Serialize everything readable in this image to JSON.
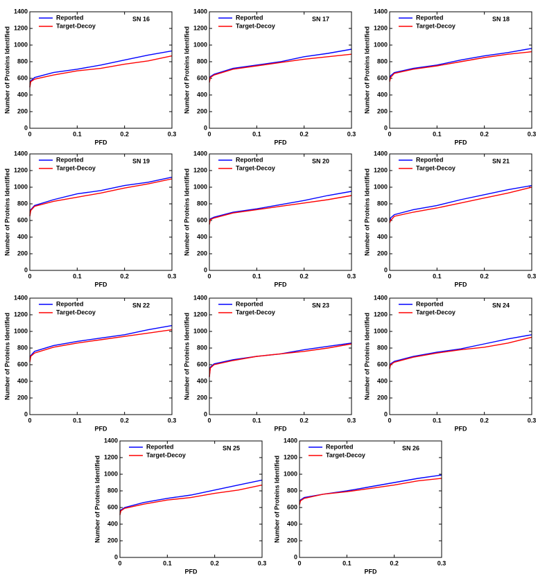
{
  "chart_data": [
    {
      "type": "line",
      "title": "SN 16",
      "xlabel": "PFD",
      "ylabel": "Number of Proteins Identified",
      "x": [
        0,
        0.002,
        0.01,
        0.05,
        0.1,
        0.15,
        0.2,
        0.25,
        0.3
      ],
      "xlim": [
        0,
        0.3
      ],
      "ylim": [
        0,
        1400
      ],
      "xticks": [
        0,
        0.1,
        0.2,
        0.3
      ],
      "yticks": [
        0,
        200,
        400,
        600,
        800,
        1000,
        1200,
        1400
      ],
      "series": [
        {
          "name": "Reported",
          "color": "#0000ff",
          "values": [
            500,
            570,
            610,
            670,
            710,
            760,
            820,
            880,
            930
          ]
        },
        {
          "name": "Target-Decoy",
          "color": "#ff0000",
          "values": [
            490,
            560,
            590,
            640,
            690,
            720,
            770,
            810,
            870
          ]
        }
      ]
    },
    {
      "type": "line",
      "title": "SN 17",
      "xlabel": "PFD",
      "ylabel": "Number of Proteins Identified",
      "x": [
        0,
        0.002,
        0.01,
        0.05,
        0.1,
        0.15,
        0.2,
        0.25,
        0.3
      ],
      "xlim": [
        0,
        0.3
      ],
      "ylim": [
        0,
        1400
      ],
      "xticks": [
        0,
        0.1,
        0.2,
        0.3
      ],
      "yticks": [
        0,
        200,
        400,
        600,
        800,
        1000,
        1200,
        1400
      ],
      "series": [
        {
          "name": "Reported",
          "color": "#0000ff",
          "values": [
            560,
            620,
            650,
            720,
            760,
            800,
            860,
            900,
            950
          ]
        },
        {
          "name": "Target-Decoy",
          "color": "#ff0000",
          "values": [
            550,
            610,
            640,
            710,
            750,
            790,
            830,
            860,
            890
          ]
        }
      ]
    },
    {
      "type": "line",
      "title": "SN 18",
      "xlabel": "PFD",
      "ylabel": "Number of Proteins Identified",
      "x": [
        0,
        0.002,
        0.01,
        0.05,
        0.1,
        0.15,
        0.2,
        0.25,
        0.3
      ],
      "xlim": [
        0,
        0.3
      ],
      "ylim": [
        0,
        1400
      ],
      "xticks": [
        0,
        0.1,
        0.2,
        0.3
      ],
      "yticks": [
        0,
        200,
        400,
        600,
        800,
        1000,
        1200,
        1400
      ],
      "series": [
        {
          "name": "Reported",
          "color": "#0000ff",
          "values": [
            580,
            630,
            670,
            720,
            760,
            820,
            870,
            910,
            960
          ]
        },
        {
          "name": "Target-Decoy",
          "color": "#ff0000",
          "values": [
            560,
            610,
            660,
            710,
            750,
            800,
            850,
            890,
            920
          ]
        }
      ]
    },
    {
      "type": "line",
      "title": "SN 19",
      "xlabel": "PFD",
      "ylabel": "Number of Proteins Identified",
      "x": [
        0,
        0.002,
        0.01,
        0.05,
        0.1,
        0.15,
        0.2,
        0.25,
        0.3
      ],
      "xlim": [
        0,
        0.3
      ],
      "ylim": [
        0,
        1400
      ],
      "xticks": [
        0,
        0.1,
        0.2,
        0.3
      ],
      "yticks": [
        0,
        200,
        400,
        600,
        800,
        1000,
        1200,
        1400
      ],
      "series": [
        {
          "name": "Reported",
          "color": "#0000ff",
          "values": [
            660,
            730,
            780,
            850,
            920,
            960,
            1020,
            1060,
            1120
          ]
        },
        {
          "name": "Target-Decoy",
          "color": "#ff0000",
          "values": [
            650,
            720,
            770,
            830,
            880,
            930,
            990,
            1040,
            1100
          ]
        }
      ]
    },
    {
      "type": "line",
      "title": "SN 20",
      "xlabel": "PFD",
      "ylabel": "Number of Proteins Identified",
      "x": [
        0,
        0.002,
        0.01,
        0.05,
        0.1,
        0.15,
        0.2,
        0.25,
        0.3
      ],
      "xlim": [
        0,
        0.3
      ],
      "ylim": [
        0,
        1400
      ],
      "xticks": [
        0,
        0.1,
        0.2,
        0.3
      ],
      "yticks": [
        0,
        200,
        400,
        600,
        800,
        1000,
        1200,
        1400
      ],
      "series": [
        {
          "name": "Reported",
          "color": "#0000ff",
          "values": [
            560,
            620,
            640,
            700,
            740,
            790,
            840,
            900,
            950
          ]
        },
        {
          "name": "Target-Decoy",
          "color": "#ff0000",
          "values": [
            550,
            610,
            630,
            690,
            730,
            770,
            810,
            850,
            900
          ]
        }
      ]
    },
    {
      "type": "line",
      "title": "SN 21",
      "xlabel": "PFD",
      "ylabel": "Number of Proteins Identified",
      "x": [
        0,
        0.002,
        0.01,
        0.05,
        0.1,
        0.15,
        0.2,
        0.25,
        0.3
      ],
      "xlim": [
        0,
        0.3
      ],
      "ylim": [
        0,
        1400
      ],
      "xticks": [
        0,
        0.1,
        0.2,
        0.3
      ],
      "yticks": [
        0,
        200,
        400,
        600,
        800,
        1000,
        1200,
        1400
      ],
      "series": [
        {
          "name": "Reported",
          "color": "#0000ff",
          "values": [
            580,
            630,
            670,
            730,
            780,
            850,
            910,
            970,
            1020
          ]
        },
        {
          "name": "Target-Decoy",
          "color": "#ff0000",
          "values": [
            570,
            600,
            650,
            700,
            750,
            810,
            870,
            930,
            1000
          ]
        }
      ]
    },
    {
      "type": "line",
      "title": "SN 22",
      "xlabel": "PFD",
      "ylabel": "Number of Proteins Identified",
      "x": [
        0,
        0.002,
        0.01,
        0.05,
        0.1,
        0.15,
        0.2,
        0.25,
        0.3
      ],
      "xlim": [
        0,
        0.3
      ],
      "ylim": [
        0,
        1400
      ],
      "xticks": [
        0,
        0.1,
        0.2,
        0.3
      ],
      "yticks": [
        0,
        200,
        400,
        600,
        800,
        1000,
        1200,
        1400
      ],
      "series": [
        {
          "name": "Reported",
          "color": "#0000ff",
          "values": [
            640,
            710,
            760,
            830,
            880,
            920,
            960,
            1020,
            1070
          ]
        },
        {
          "name": "Target-Decoy",
          "color": "#ff0000",
          "values": [
            630,
            700,
            740,
            810,
            860,
            900,
            940,
            980,
            1020
          ]
        }
      ]
    },
    {
      "type": "line",
      "title": "SN 23",
      "xlabel": "PFD",
      "ylabel": "Number of Proteins Identified",
      "x": [
        0,
        0.002,
        0.01,
        0.05,
        0.1,
        0.15,
        0.2,
        0.25,
        0.3
      ],
      "xlim": [
        0,
        0.3
      ],
      "ylim": [
        0,
        1400
      ],
      "xticks": [
        0,
        0.1,
        0.2,
        0.3
      ],
      "yticks": [
        0,
        200,
        400,
        600,
        800,
        1000,
        1200,
        1400
      ],
      "series": [
        {
          "name": "Reported",
          "color": "#0000ff",
          "values": [
            460,
            570,
            610,
            660,
            700,
            730,
            780,
            820,
            860
          ]
        },
        {
          "name": "Target-Decoy",
          "color": "#ff0000",
          "values": [
            450,
            560,
            600,
            650,
            700,
            730,
            760,
            800,
            850
          ]
        }
      ]
    },
    {
      "type": "line",
      "title": "SN 24",
      "xlabel": "PFD",
      "ylabel": "Number of Proteins Identified",
      "x": [
        0,
        0.002,
        0.01,
        0.05,
        0.1,
        0.15,
        0.2,
        0.25,
        0.3
      ],
      "xlim": [
        0,
        0.3
      ],
      "ylim": [
        0,
        1400
      ],
      "xticks": [
        0,
        0.1,
        0.2,
        0.3
      ],
      "yticks": [
        0,
        200,
        400,
        600,
        800,
        1000,
        1200,
        1400
      ],
      "series": [
        {
          "name": "Reported",
          "color": "#0000ff",
          "values": [
            560,
            610,
            640,
            700,
            750,
            790,
            850,
            910,
            960
          ]
        },
        {
          "name": "Target-Decoy",
          "color": "#ff0000",
          "values": [
            550,
            600,
            630,
            690,
            740,
            780,
            810,
            860,
            930
          ]
        }
      ]
    },
    {
      "type": "line",
      "title": "SN 25",
      "xlabel": "PFD",
      "ylabel": "Number of Proteins Identified",
      "x": [
        0,
        0.002,
        0.01,
        0.05,
        0.1,
        0.15,
        0.2,
        0.25,
        0.3
      ],
      "xlim": [
        0,
        0.3
      ],
      "ylim": [
        0,
        1400
      ],
      "xticks": [
        0,
        0.1,
        0.2,
        0.3
      ],
      "yticks": [
        0,
        200,
        400,
        600,
        800,
        1000,
        1200,
        1400
      ],
      "series": [
        {
          "name": "Reported",
          "color": "#0000ff",
          "values": [
            520,
            570,
            600,
            660,
            710,
            750,
            810,
            870,
            930
          ]
        },
        {
          "name": "Target-Decoy",
          "color": "#ff0000",
          "values": [
            510,
            560,
            590,
            640,
            690,
            720,
            770,
            810,
            870
          ]
        }
      ]
    },
    {
      "type": "line",
      "title": "SN 26",
      "xlabel": "PFD",
      "ylabel": "Number of Proteins Identified",
      "x": [
        0,
        0.002,
        0.01,
        0.05,
        0.1,
        0.15,
        0.2,
        0.25,
        0.3
      ],
      "xlim": [
        0,
        0.3
      ],
      "ylim": [
        0,
        1400
      ],
      "xticks": [
        0,
        0.1,
        0.2,
        0.3
      ],
      "yticks": [
        0,
        200,
        400,
        600,
        800,
        1000,
        1200,
        1400
      ],
      "series": [
        {
          "name": "Reported",
          "color": "#0000ff",
          "values": [
            640,
            690,
            720,
            760,
            800,
            850,
            900,
            950,
            990
          ]
        },
        {
          "name": "Target-Decoy",
          "color": "#ff0000",
          "values": [
            630,
            680,
            710,
            760,
            790,
            830,
            870,
            920,
            950
          ]
        }
      ]
    }
  ]
}
